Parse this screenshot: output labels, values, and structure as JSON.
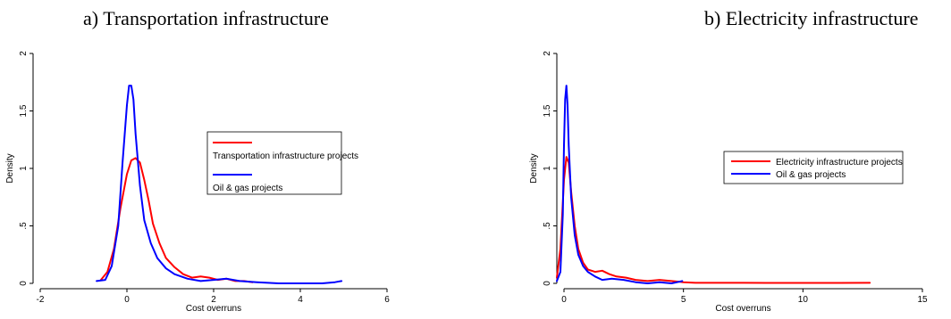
{
  "chart_data": [
    {
      "type": "line",
      "title": "a) Transportation infrastructure",
      "xlabel": "Cost overruns",
      "ylabel": "Density",
      "xlim": [
        -2,
        6
      ],
      "ylim": [
        0,
        2
      ],
      "xticks": [
        -2,
        0,
        2,
        4,
        6
      ],
      "yticks": [
        0,
        0.5,
        1,
        1.5,
        2
      ],
      "ytick_labels": [
        "0",
        ".5",
        "1",
        "1.5",
        "2"
      ],
      "legend_position": "right",
      "series": [
        {
          "name": "Transportation infrastructure projects",
          "color": "#ff0000",
          "x": [
            -0.6,
            -0.45,
            -0.3,
            -0.15,
            0.0,
            0.1,
            0.2,
            0.3,
            0.4,
            0.5,
            0.6,
            0.75,
            0.9,
            1.1,
            1.3,
            1.5,
            1.7,
            1.9,
            2.1,
            2.3,
            2.5,
            2.7,
            2.9
          ],
          "y": [
            0.03,
            0.1,
            0.3,
            0.65,
            0.95,
            1.07,
            1.09,
            1.05,
            0.9,
            0.72,
            0.52,
            0.35,
            0.22,
            0.14,
            0.08,
            0.05,
            0.06,
            0.05,
            0.03,
            0.04,
            0.02,
            0.02,
            0.01
          ]
        },
        {
          "name": "Oil & gas projects",
          "color": "#0000ff",
          "x": [
            -0.7,
            -0.5,
            -0.35,
            -0.2,
            -0.1,
            0.0,
            0.05,
            0.1,
            0.15,
            0.2,
            0.3,
            0.4,
            0.55,
            0.7,
            0.9,
            1.1,
            1.4,
            1.7,
            2.0,
            2.3,
            2.6,
            3.0,
            3.5,
            4.0,
            4.5,
            4.8,
            4.95
          ],
          "y": [
            0.02,
            0.03,
            0.15,
            0.5,
            1.05,
            1.55,
            1.72,
            1.72,
            1.6,
            1.3,
            0.85,
            0.55,
            0.35,
            0.22,
            0.13,
            0.08,
            0.04,
            0.02,
            0.03,
            0.04,
            0.02,
            0.01,
            0.0,
            0.0,
            0.0,
            0.01,
            0.02
          ]
        }
      ]
    },
    {
      "type": "line",
      "title": "b) Electricity infrastructure",
      "xlabel": "Cost overruns",
      "ylabel": "Density",
      "xlim": [
        0,
        15
      ],
      "ylim": [
        0,
        2
      ],
      "xticks": [
        0,
        5,
        10,
        15
      ],
      "yticks": [
        0,
        0.5,
        1,
        1.5,
        2
      ],
      "ytick_labels": [
        "0",
        ".5",
        "1",
        "1.5",
        "2"
      ],
      "legend_position": "right",
      "series": [
        {
          "name": "Electricity infrastructure projects",
          "color": "#ff0000",
          "x": [
            -0.3,
            -0.15,
            0.0,
            0.1,
            0.2,
            0.3,
            0.45,
            0.6,
            0.8,
            1.0,
            1.3,
            1.6,
            1.9,
            2.2,
            2.6,
            3.0,
            3.5,
            4.0,
            4.5,
            5.0,
            5.5,
            6.5,
            7.5,
            8.5,
            10.0,
            11.5,
            12.8
          ],
          "y": [
            0.05,
            0.3,
            0.9,
            1.1,
            1.05,
            0.8,
            0.5,
            0.3,
            0.18,
            0.12,
            0.1,
            0.11,
            0.08,
            0.06,
            0.05,
            0.03,
            0.02,
            0.03,
            0.02,
            0.01,
            0.005,
            0.005,
            0.005,
            0.004,
            0.004,
            0.004,
            0.005
          ]
        },
        {
          "name": "Oil & gas projects",
          "color": "#0000ff",
          "x": [
            -0.3,
            -0.15,
            -0.05,
            0.0,
            0.05,
            0.1,
            0.15,
            0.2,
            0.3,
            0.45,
            0.6,
            0.8,
            1.0,
            1.3,
            1.6,
            2.0,
            2.5,
            3.0,
            3.5,
            4.0,
            4.5,
            4.95
          ],
          "y": [
            0.02,
            0.1,
            0.6,
            1.2,
            1.6,
            1.72,
            1.55,
            1.2,
            0.75,
            0.42,
            0.25,
            0.15,
            0.1,
            0.06,
            0.03,
            0.04,
            0.03,
            0.01,
            0.0,
            0.01,
            0.0,
            0.02
          ]
        }
      ]
    }
  ]
}
